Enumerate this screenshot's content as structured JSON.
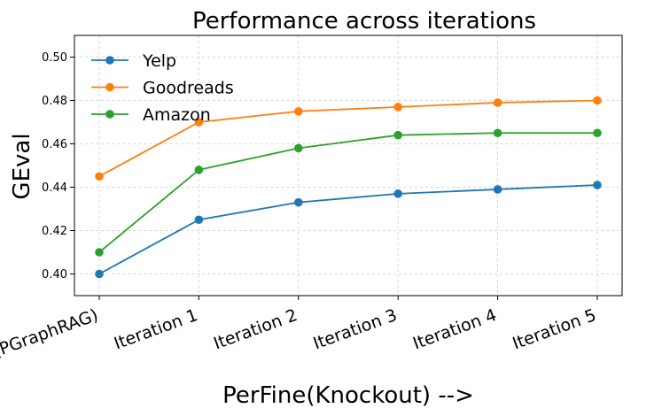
{
  "chart_data": {
    "type": "line",
    "title": "Performance across iterations",
    "xlabel": "PerFine(Knockout) -->",
    "ylabel": "GEval",
    "categories": [
      "Base(PGraphRAG)",
      "Iteration 1",
      "Iteration 2",
      "Iteration 3",
      "Iteration 4",
      "Iteration 5"
    ],
    "ylim": [
      0.39,
      0.51
    ],
    "yticks": [
      0.4,
      0.42,
      0.44,
      0.46,
      0.48,
      0.5
    ],
    "ytick_labels": [
      "0.40",
      "0.42",
      "0.44",
      "0.46",
      "0.48",
      "0.50"
    ],
    "grid": true,
    "legend_position": "top-left",
    "series": [
      {
        "name": "Yelp",
        "color": "#1f77b4",
        "values": [
          0.4,
          0.425,
          0.433,
          0.437,
          0.439,
          0.441
        ]
      },
      {
        "name": "Goodreads",
        "color": "#ff7f0e",
        "values": [
          0.445,
          0.47,
          0.475,
          0.477,
          0.479,
          0.48
        ]
      },
      {
        "name": "Amazon",
        "color": "#2ca02c",
        "values": [
          0.41,
          0.448,
          0.458,
          0.464,
          0.465,
          0.465
        ]
      }
    ]
  }
}
